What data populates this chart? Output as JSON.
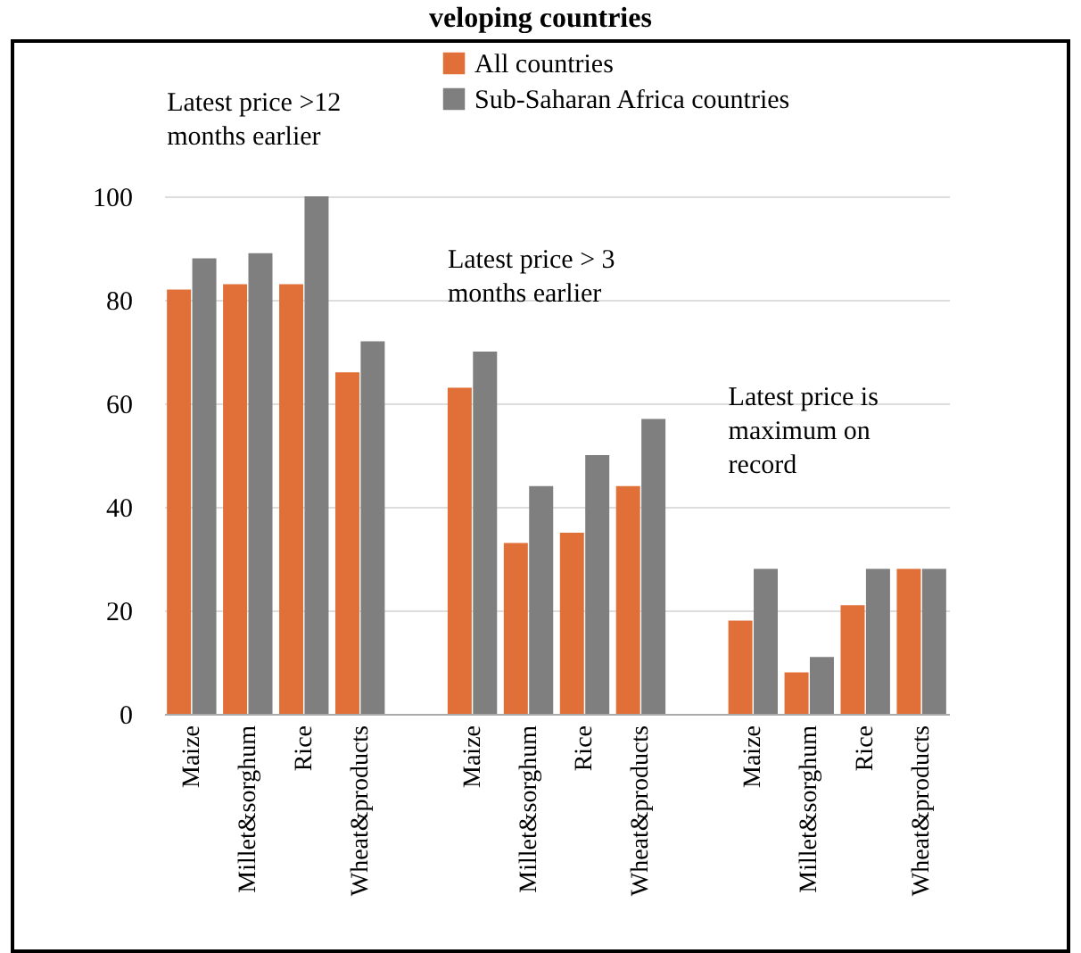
{
  "chart_data": {
    "type": "bar",
    "title": "veloping countries",
    "categories": [
      "Maize",
      "Millet&sorghum",
      "Rice",
      "Wheat&products",
      null,
      "Maize",
      "Millet&sorghum",
      "Rice",
      "Wheat&products",
      null,
      "Maize",
      "Millet&sorghum",
      "Rice",
      "Wheat&products"
    ],
    "series": [
      {
        "name": "All countries",
        "color": "#e07038",
        "values": [
          82,
          83,
          83,
          66,
          null,
          63,
          33,
          35,
          44,
          null,
          18,
          8,
          21,
          28
        ]
      },
      {
        "name": "Sub-Saharan Africa countries",
        "color": "#7f7f7f",
        "values": [
          88,
          89,
          100,
          72,
          null,
          70,
          44,
          50,
          57,
          null,
          28,
          11,
          28,
          28
        ]
      }
    ],
    "ylim": [
      0,
      100
    ],
    "yticks": [
      0,
      20,
      40,
      60,
      80,
      100
    ],
    "grid": "y",
    "legend": "top",
    "annotations": [
      "Latest price >12 months earlier",
      "Latest price > 3 months earlier",
      "Latest price is maximum on record"
    ]
  }
}
